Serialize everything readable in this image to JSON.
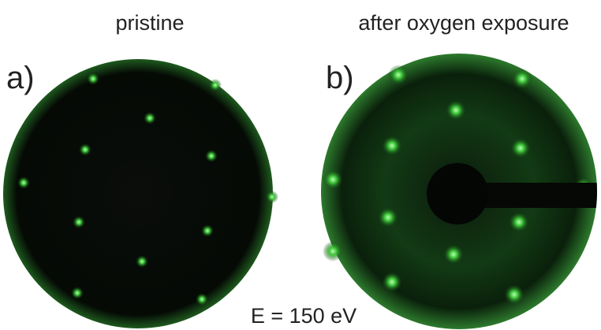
{
  "panels": [
    {
      "title": "pristine",
      "label": "a)"
    },
    {
      "title": "after oxygen exposure",
      "label": "b)"
    }
  ],
  "caption": "E = 150 eV"
}
